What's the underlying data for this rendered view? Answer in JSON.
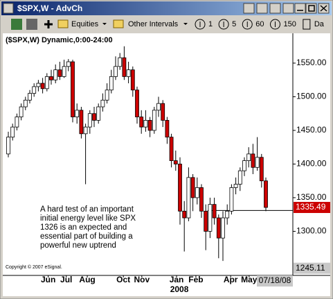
{
  "window": {
    "title": "$SPX,W - AdvCh"
  },
  "toolbar": {
    "symbol_group": "Equities",
    "interval_group": "Other Intervals",
    "intervals": [
      "1",
      "5",
      "60",
      "150",
      "Da"
    ]
  },
  "chart_data": {
    "type": "candlestick",
    "title": "($SPX,W) Dynamic,0:00-24:00",
    "open": [
      1415,
      1440,
      1455,
      1470,
      1485,
      1495,
      1505,
      1515,
      1520,
      1512,
      1530,
      1525,
      1540,
      1530,
      1545,
      1552,
      1470,
      1480,
      1445,
      1455,
      1475,
      1465,
      1485,
      1495,
      1510,
      1530,
      1545,
      1558,
      1530,
      1540,
      1510,
      1470,
      1455,
      1465,
      1450,
      1480,
      1490,
      1465,
      1440,
      1405,
      1400,
      1330,
      1320,
      1380,
      1350,
      1365,
      1330,
      1300,
      1340,
      1320,
      1290,
      1320,
      1330,
      1365,
      1370,
      1390,
      1405,
      1415,
      1395,
      1410,
      1375
    ],
    "high": [
      1448,
      1460,
      1475,
      1490,
      1500,
      1510,
      1520,
      1525,
      1528,
      1535,
      1540,
      1548,
      1552,
      1555,
      1556,
      1555,
      1490,
      1485,
      1460,
      1480,
      1485,
      1490,
      1505,
      1520,
      1540,
      1560,
      1565,
      1575,
      1552,
      1545,
      1515,
      1480,
      1480,
      1470,
      1485,
      1500,
      1495,
      1470,
      1445,
      1420,
      1410,
      1345,
      1395,
      1385,
      1380,
      1370,
      1340,
      1350,
      1350,
      1325,
      1330,
      1340,
      1370,
      1380,
      1395,
      1410,
      1425,
      1430,
      1440,
      1415,
      1380
    ],
    "low": [
      1410,
      1435,
      1450,
      1465,
      1480,
      1490,
      1500,
      1508,
      1505,
      1508,
      1518,
      1520,
      1525,
      1528,
      1538,
      1462,
      1460,
      1438,
      1370,
      1445,
      1455,
      1460,
      1478,
      1490,
      1505,
      1525,
      1540,
      1525,
      1520,
      1500,
      1460,
      1445,
      1448,
      1440,
      1445,
      1470,
      1455,
      1430,
      1395,
      1390,
      1310,
      1270,
      1315,
      1330,
      1340,
      1320,
      1272,
      1290,
      1310,
      1260,
      1256,
      1310,
      1325,
      1355,
      1360,
      1382,
      1395,
      1385,
      1390,
      1365,
      1330
    ],
    "close": [
      1440,
      1455,
      1470,
      1485,
      1495,
      1505,
      1515,
      1520,
      1512,
      1530,
      1525,
      1540,
      1530,
      1545,
      1552,
      1470,
      1480,
      1445,
      1455,
      1475,
      1465,
      1485,
      1495,
      1510,
      1530,
      1545,
      1558,
      1530,
      1540,
      1510,
      1470,
      1455,
      1465,
      1450,
      1480,
      1490,
      1465,
      1440,
      1405,
      1400,
      1330,
      1320,
      1380,
      1350,
      1365,
      1330,
      1300,
      1340,
      1320,
      1290,
      1320,
      1330,
      1365,
      1370,
      1390,
      1405,
      1415,
      1395,
      1410,
      1375,
      1335.49
    ],
    "up_color": "#ffffff",
    "down_color": "#cc0000",
    "ylim": [
      1235.5,
      1594.3
    ],
    "yticks": [
      {
        "value": 1550,
        "label": "1550.00"
      },
      {
        "value": 1500,
        "label": "1500.00"
      },
      {
        "value": 1450,
        "label": "1450.00"
      },
      {
        "value": 1400,
        "label": "1400.00"
      },
      {
        "value": 1350,
        "label": "1350.00"
      },
      {
        "value": 1300,
        "label": "1300.00"
      }
    ],
    "axis_low": {
      "value": 1245.11,
      "label": "1245.11"
    },
    "last_price": {
      "value": 1335.49,
      "label": "1335.49"
    },
    "support_level": 1331,
    "xticks": [
      {
        "value": 9.3,
        "label": "Jun"
      },
      {
        "value": 13.5,
        "label": "Jul"
      },
      {
        "value": 18.4,
        "label": "Aug"
      },
      {
        "value": 26.8,
        "label": "Oct"
      },
      {
        "value": 31.1,
        "label": "Nov"
      },
      {
        "value": 39.2,
        "label": "Jan"
      },
      {
        "value": 43.7,
        "label": "Feb"
      },
      {
        "value": 51.8,
        "label": "Apr"
      },
      {
        "value": 56.1,
        "label": "May"
      }
    ],
    "year_label": {
      "value": 39.2,
      "label": "2008"
    },
    "date_label": "07/18/08",
    "annotation": [
      "A hard test of an important",
      "initial energy level like SPX",
      "1326 is an expected and",
      "essential part of building a",
      "powerful new uptrend"
    ],
    "copyright": "Copyright © 2007 eSignal."
  }
}
